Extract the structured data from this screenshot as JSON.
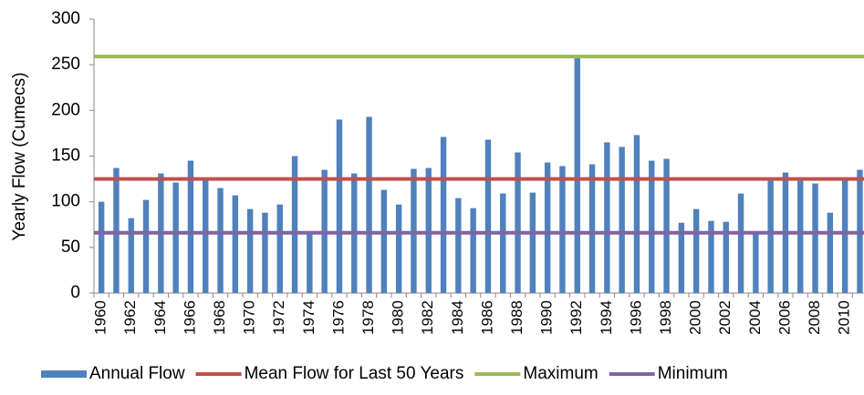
{
  "chart_data": {
    "type": "bar",
    "y_label": "Yearly Flow (Cumecs)",
    "categories": [
      "1960",
      null,
      "1962",
      null,
      "1964",
      null,
      "1966",
      null,
      "1968",
      null,
      "1970",
      null,
      "1972",
      null,
      "1974",
      null,
      "1976",
      null,
      "1978",
      null,
      "1980",
      null,
      "1982",
      null,
      "1984",
      null,
      "1986",
      null,
      "1988",
      null,
      "1990",
      null,
      "1992",
      null,
      "1994",
      null,
      "1996",
      null,
      "1998",
      null,
      "2000",
      null,
      "2002",
      null,
      "2004",
      null,
      "2006",
      null,
      "2008",
      null,
      "2010",
      null
    ],
    "series": [
      {
        "name": "Annual Flow",
        "color": "#4f81bd",
        "values": [
          100,
          137,
          82,
          102,
          131,
          121,
          145,
          125,
          115,
          107,
          92,
          88,
          97,
          150,
          67,
          135,
          190,
          131,
          193,
          113,
          97,
          136,
          137,
          171,
          104,
          93,
          168,
          109,
          154,
          110,
          143,
          139,
          258,
          141,
          165,
          160,
          173,
          145,
          147,
          77,
          92,
          79,
          78,
          109,
          66,
          123,
          132,
          123,
          120,
          88,
          125,
          135
        ]
      }
    ],
    "reference_lines": [
      {
        "name": "Mean Flow for Last 50 Years",
        "color": "#c0504d",
        "value": 125
      },
      {
        "name": "Maximum",
        "color": "#9bbb59",
        "value": 259
      },
      {
        "name": "Minimum",
        "color": "#8064a2",
        "value": 66
      }
    ],
    "ylim": [
      0,
      300
    ],
    "yticks": [
      0,
      50,
      100,
      150,
      200,
      250,
      300
    ],
    "grid": false
  }
}
